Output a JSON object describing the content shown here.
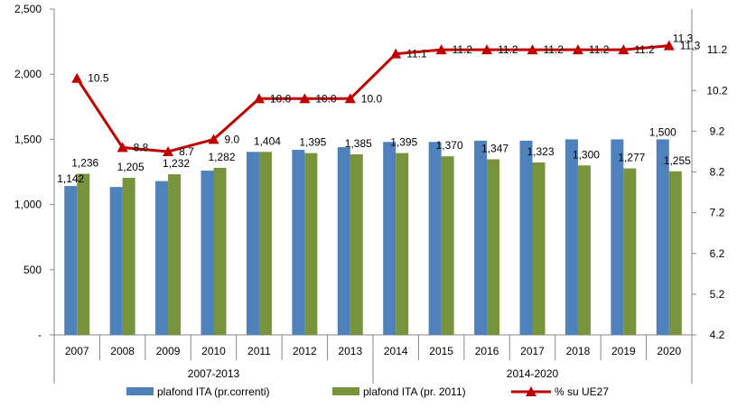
{
  "chart_data": {
    "type": "bar",
    "categories": [
      "2007",
      "2008",
      "2009",
      "2010",
      "2011",
      "2012",
      "2013",
      "2014",
      "2015",
      "2016",
      "2017",
      "2018",
      "2019",
      "2020"
    ],
    "groups": [
      {
        "label": "2007-2013",
        "categories": [
          "2007",
          "2008",
          "2009",
          "2010",
          "2011",
          "2012",
          "2013"
        ]
      },
      {
        "label": "2014-2020",
        "categories": [
          "2014",
          "2015",
          "2016",
          "2017",
          "2018",
          "2019",
          "2020"
        ]
      }
    ],
    "series": [
      {
        "name": "plafond ITA (pr.correnti)",
        "type": "bar",
        "axis": "left",
        "color": "#4F81BD",
        "values": [
          1142,
          1135,
          1180,
          1260,
          1404,
          1420,
          1440,
          1480,
          1480,
          1490,
          1490,
          1500,
          1500,
          1500
        ],
        "labels": [
          "1,142",
          "",
          "",
          "",
          "",
          "",
          "",
          "",
          "",
          "",
          "",
          "",
          "",
          "1,500"
        ]
      },
      {
        "name": "plafond ITA (pr. 2011)",
        "type": "bar",
        "axis": "left",
        "color": "#77933C",
        "values": [
          1236,
          1205,
          1232,
          1282,
          1404,
          1395,
          1385,
          1395,
          1370,
          1347,
          1323,
          1300,
          1277,
          1255
        ],
        "labels": [
          "1,236",
          "1,205",
          "1,232",
          "1,282",
          "1,404",
          "1,395",
          "1,385",
          "1,395",
          "1,370",
          "1,347",
          "1,323",
          "1,300",
          "1,277",
          "1,255"
        ]
      },
      {
        "name": "% su UE27",
        "type": "line",
        "axis": "right",
        "color": "#C00000",
        "values": [
          10.5,
          8.8,
          8.7,
          9.0,
          10.0,
          10.0,
          10.0,
          11.1,
          11.2,
          11.2,
          11.2,
          11.2,
          11.2,
          11.3
        ],
        "labels": [
          "10.5",
          "8.8",
          "8.7",
          "9.0",
          "10.0",
          "10.0",
          "10.0",
          "11.1",
          "11.2",
          "11.2",
          "11.2",
          "11.2",
          "11.2",
          "11.3"
        ]
      }
    ],
    "y_left": {
      "min": 0,
      "max": 2500,
      "step": 500,
      "tick_labels": [
        "-",
        "500",
        "1,000",
        "1,500",
        "2,000",
        "2,500"
      ]
    },
    "y_right": {
      "min": 4.2,
      "max": 12.2,
      "step": 1.0,
      "tick_labels": [
        "4.2",
        "5.2",
        "6.2",
        "7.2",
        "8.2",
        "9.2",
        "10.2",
        "11.2"
      ]
    },
    "grid": false,
    "legend_position": "bottom",
    "right_end_label": "11.3"
  }
}
